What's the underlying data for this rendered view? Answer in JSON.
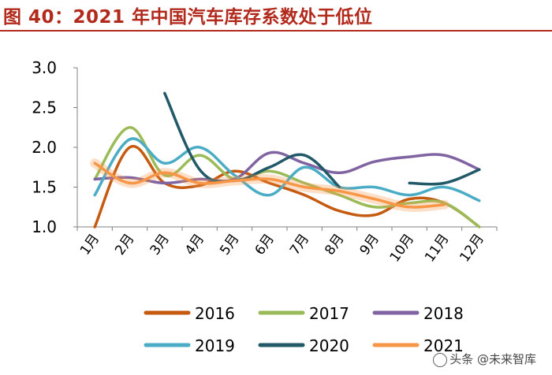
{
  "chart_data": {
    "type": "line",
    "title": "图 40：2021 年中国汽车库存系数处于低位",
    "xlabel": "",
    "ylabel": "",
    "categories": [
      "1月",
      "2月",
      "3月",
      "4月",
      "5月",
      "6月",
      "7月",
      "8月",
      "9月",
      "10月",
      "11月",
      "12月"
    ],
    "ylim": [
      1.0,
      3.0
    ],
    "yticks": [
      "1.0",
      "1.5",
      "2.0",
      "2.5",
      "3.0"
    ],
    "grid": false,
    "legend_position": "bottom",
    "series": [
      {
        "name": "2016",
        "color": "#c55a11",
        "values": [
          1.0,
          2.0,
          1.55,
          1.52,
          1.7,
          1.55,
          1.4,
          1.2,
          1.15,
          1.35,
          1.3,
          1.0
        ]
      },
      {
        "name": "2017",
        "color": "#9bbb59",
        "values": [
          1.6,
          2.25,
          1.65,
          1.9,
          1.6,
          1.7,
          1.55,
          1.4,
          1.25,
          1.3,
          1.3,
          1.0
        ]
      },
      {
        "name": "2018",
        "color": "#8064a2",
        "values": [
          1.6,
          1.62,
          1.55,
          1.6,
          1.6,
          1.93,
          1.8,
          1.68,
          1.82,
          1.88,
          1.9,
          1.72
        ]
      },
      {
        "name": "2019",
        "color": "#4bacc6",
        "values": [
          1.4,
          2.1,
          1.8,
          2.0,
          1.65,
          1.4,
          1.75,
          1.5,
          1.5,
          1.4,
          1.5,
          1.33
        ]
      },
      {
        "name": "2020",
        "color": "#215968",
        "values": [
          null,
          null,
          2.68,
          1.72,
          1.58,
          1.75,
          1.9,
          1.5,
          null,
          1.55,
          1.55,
          1.72
        ]
      },
      {
        "name": "2021",
        "color": "#f79646",
        "values": [
          1.8,
          1.55,
          1.68,
          1.55,
          1.58,
          1.6,
          1.5,
          1.45,
          1.35,
          1.25,
          1.28,
          null
        ]
      }
    ]
  },
  "watermark": {
    "text": "头条 @未来智库"
  }
}
